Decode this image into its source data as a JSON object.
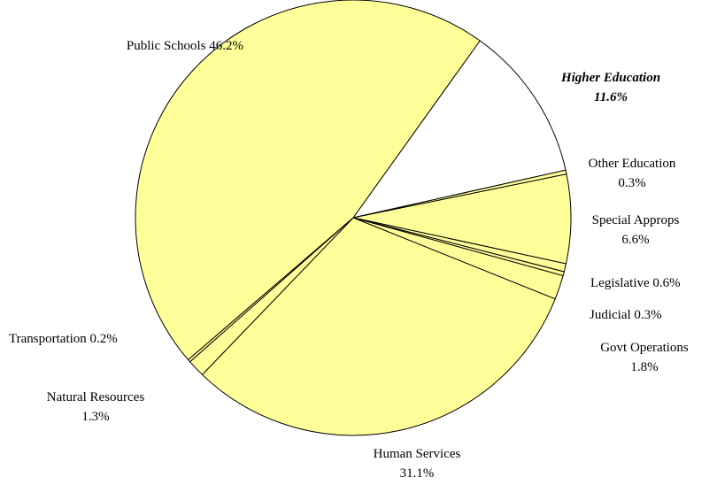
{
  "chart_data": {
    "type": "pie",
    "title": "",
    "unit": "%",
    "colors": {
      "default": "#ffff99",
      "highlight": "#ffffff",
      "stroke": "#000000"
    },
    "slices": [
      {
        "key": "higher-education",
        "name": "Higher Education",
        "value_text": "11.6%",
        "value": 11.6,
        "highlight": true
      },
      {
        "key": "other-education",
        "name": "Other Education",
        "value_text": "0.3%",
        "value": 0.3
      },
      {
        "key": "special-approps",
        "name": "Special Approps",
        "value_text": "6.6%",
        "value": 6.6
      },
      {
        "key": "legislative",
        "name": "Legislative",
        "value_text": "0.6%",
        "value": 0.6
      },
      {
        "key": "judicial",
        "name": "Judicial",
        "value_text": "0.3%",
        "value": 0.3
      },
      {
        "key": "govt-operations",
        "name": "Govt Operations",
        "value_text": "1.8%",
        "value": 1.8
      },
      {
        "key": "human-services",
        "name": "Human Services",
        "value_text": "31.1%",
        "value": 31.1
      },
      {
        "key": "natural-resources",
        "name": "Natural Resources",
        "value_text": "1.3%",
        "value": 1.3
      },
      {
        "key": "transportation",
        "name": "Transportation",
        "value_text": "0.2%",
        "value": 0.2
      },
      {
        "key": "public-schools",
        "name": "Public Schools",
        "value_text": "46.2%",
        "value": 46.2
      }
    ]
  }
}
